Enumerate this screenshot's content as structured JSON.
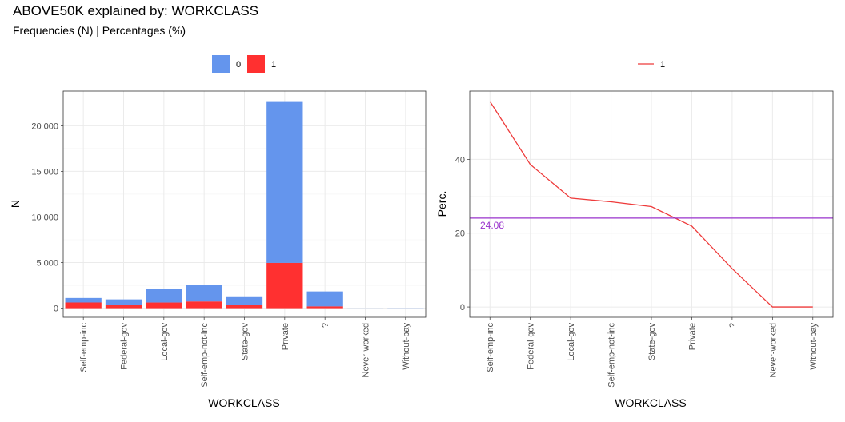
{
  "title": "ABOVE50K explained by: WORKCLASS",
  "subtitle": "Frequencies (N) | Percentages (%)",
  "colors": {
    "class0": "#6495ED",
    "class1": "#FF3030",
    "line": "#EE3B3B",
    "ref": "#9932CC"
  },
  "chart_data": [
    {
      "type": "bar",
      "stacked": true,
      "categories": [
        "Self-emp-inc",
        "Federal-gov",
        "Local-gov",
        "Self-emp-not-inc",
        "State-gov",
        "Private",
        "?",
        "Never-worked",
        "Without-pay"
      ],
      "series": [
        {
          "name": "0",
          "values": [
            494,
            589,
            1476,
            1817,
            945,
            17733,
            1645,
            7,
            14
          ]
        },
        {
          "name": "1",
          "values": [
            622,
            371,
            617,
            724,
            353,
            4963,
            191,
            0,
            0
          ]
        }
      ],
      "xlabel": "WORKCLASS",
      "ylabel": "N",
      "ylim": [
        -1000,
        23800
      ],
      "yticks": [
        0,
        5000,
        10000,
        15000,
        20000
      ],
      "ytick_labels": [
        "0",
        "5 000",
        "10 000",
        "15 000",
        "20 000"
      ],
      "legend_position": "top",
      "grid": true
    },
    {
      "type": "line",
      "categories": [
        "Self-emp-inc",
        "Federal-gov",
        "Local-gov",
        "Self-emp-not-inc",
        "State-gov",
        "Private",
        "?",
        "Never-worked",
        "Without-pay"
      ],
      "series": [
        {
          "name": "1",
          "values": [
            55.7,
            38.6,
            29.5,
            28.5,
            27.2,
            21.9,
            10.4,
            0,
            0
          ]
        }
      ],
      "reference_line": {
        "value": 24.08,
        "label": "24.08"
      },
      "xlabel": "WORKCLASS",
      "ylabel": "Perc.",
      "ylim": [
        -2.8,
        58.5
      ],
      "yticks": [
        0,
        20,
        40
      ],
      "ytick_labels": [
        "0",
        "20",
        "40"
      ],
      "legend_position": "top",
      "grid": true
    }
  ]
}
